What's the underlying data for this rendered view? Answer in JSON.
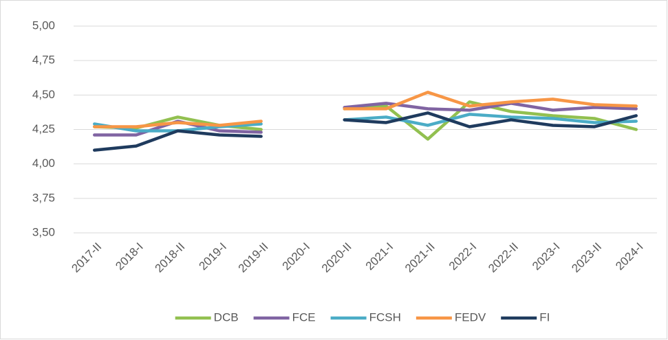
{
  "chart_data": {
    "type": "line",
    "categories": [
      "2017-II",
      "2018-I",
      "2018-II",
      "2019-I",
      "2019-II",
      "2020-I",
      "2020-II",
      "2021-I",
      "2021-II",
      "2022-I",
      "2022-II",
      "2023-I",
      "2023-II",
      "2024-I"
    ],
    "series": [
      {
        "name": "DCB",
        "color": "#92c050",
        "values": [
          4.27,
          4.26,
          4.34,
          4.28,
          4.25,
          null,
          4.4,
          4.42,
          4.18,
          4.45,
          4.38,
          4.35,
          4.33,
          4.25
        ]
      },
      {
        "name": "FCE",
        "color": "#8064a2",
        "values": [
          4.21,
          4.21,
          4.31,
          4.24,
          4.23,
          null,
          4.41,
          4.44,
          4.4,
          4.39,
          4.44,
          4.39,
          4.41,
          4.4
        ]
      },
      {
        "name": "FCSH",
        "color": "#4bacc6",
        "values": [
          4.29,
          4.24,
          4.24,
          4.27,
          4.29,
          null,
          4.32,
          4.34,
          4.28,
          4.36,
          4.34,
          4.33,
          4.3,
          4.31
        ]
      },
      {
        "name": "FEDV",
        "color": "#f79646",
        "values": [
          4.27,
          4.27,
          4.3,
          4.28,
          4.31,
          null,
          4.4,
          4.4,
          4.52,
          4.42,
          4.45,
          4.47,
          4.43,
          4.42
        ]
      },
      {
        "name": "FI",
        "color": "#1f3b5e",
        "values": [
          4.1,
          4.13,
          4.24,
          4.21,
          4.2,
          null,
          4.32,
          4.3,
          4.37,
          4.27,
          4.32,
          4.28,
          4.27,
          4.35
        ]
      }
    ],
    "ylim": [
      3.5,
      5.0
    ],
    "yticks": [
      {
        "value": 3.5,
        "label": "3,50"
      },
      {
        "value": 3.75,
        "label": "3,75"
      },
      {
        "value": 4.0,
        "label": "4,00"
      },
      {
        "value": 4.25,
        "label": "4,25"
      },
      {
        "value": 4.5,
        "label": "4,50"
      },
      {
        "value": 4.75,
        "label": "4,75"
      },
      {
        "value": 5.0,
        "label": "5,00"
      }
    ],
    "grid": true,
    "legend": "bottom"
  }
}
